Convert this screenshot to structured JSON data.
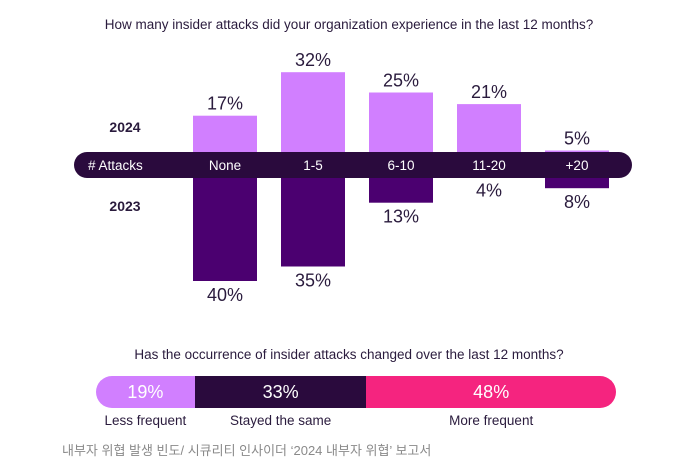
{
  "chart_data": [
    {
      "type": "bar",
      "title": "How many insider attacks did your organization experience in the last 12 months?",
      "axis_label": "# Attacks",
      "categories": [
        "None",
        "1-5",
        "6-10",
        "11-20",
        "+20"
      ],
      "series": [
        {
          "name": "2024",
          "values": [
            17,
            32,
            25,
            21,
            5
          ],
          "labels": [
            "17%",
            "32%",
            "25%",
            "21%",
            "5%"
          ],
          "color": "#d17fff",
          "direction": "up"
        },
        {
          "name": "2023",
          "values": [
            40,
            35,
            13,
            4,
            8
          ],
          "labels": [
            "40%",
            "35%",
            "13%",
            "4%",
            "8%"
          ],
          "color": "#4b0070",
          "direction": "down"
        }
      ],
      "axis_band_color": "#2a0a3d",
      "unit": "%"
    },
    {
      "type": "bar",
      "subtype": "stacked-100",
      "title": "Has the occurrence of insider attacks changed over the last 12 months?",
      "categories": [
        "Less frequent",
        "Stayed the same",
        "More frequent"
      ],
      "values": [
        19,
        33,
        48
      ],
      "labels": [
        "19%",
        "33%",
        "48%"
      ],
      "colors": [
        "#d17fff",
        "#2a0a3d",
        "#f5247f"
      ]
    }
  ],
  "source_caption": "내부자 위협 발생 빈도/ 시큐리티 인사이더 ‘2024 내부자 위협’ 보고서"
}
